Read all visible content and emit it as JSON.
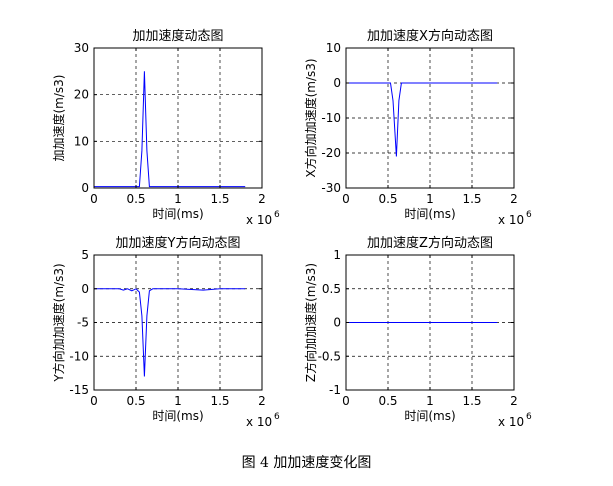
{
  "figure_caption": "图 4  加加速度变化图",
  "chart_data": [
    {
      "type": "line",
      "title": "加加速度动态图",
      "xlabel": "时间(ms)",
      "ylabel": "加加速度(m/s3)",
      "x_multiplier": "x 10",
      "x_exponent": "6",
      "xlim": [
        0,
        2
      ],
      "ylim": [
        0,
        30
      ],
      "xticks": [
        0,
        0.5,
        1,
        1.5,
        2
      ],
      "xtick_labels": [
        "0",
        "0.5",
        "1",
        "1.5",
        "2"
      ],
      "yticks": [
        0,
        10,
        20,
        30
      ],
      "ytick_labels": [
        "0",
        "10",
        "20",
        "30"
      ],
      "grid": true,
      "line_color": "#0000ff",
      "series": [
        {
          "x": [
            0,
            0.54,
            0.57,
            0.6,
            0.63,
            0.66,
            1.0,
            1.5,
            1.8
          ],
          "y": [
            0.3,
            0.3,
            8,
            25,
            8,
            0.3,
            0.3,
            0.3,
            0.3
          ]
        }
      ]
    },
    {
      "type": "line",
      "title": "加加速度X方向动态图",
      "xlabel": "时间(ms)",
      "ylabel": "X方向加加速度(m/s3)",
      "x_multiplier": "x 10",
      "x_exponent": "6",
      "xlim": [
        0,
        2
      ],
      "ylim": [
        -30,
        10
      ],
      "xticks": [
        0,
        0.5,
        1,
        1.5,
        2
      ],
      "xtick_labels": [
        "0",
        "0.5",
        "1",
        "1.5",
        "2"
      ],
      "yticks": [
        -30,
        -20,
        -10,
        0,
        10
      ],
      "ytick_labels": [
        "-30",
        "-20",
        "-10",
        "0",
        "10"
      ],
      "grid": true,
      "line_color": "#0000ff",
      "series": [
        {
          "x": [
            0,
            0.53,
            0.56,
            0.6,
            0.63,
            0.66,
            1.0,
            1.5,
            1.8
          ],
          "y": [
            0,
            0,
            -5,
            -21,
            -5,
            0,
            0,
            0,
            0
          ]
        }
      ]
    },
    {
      "type": "line",
      "title": "加加速度Y方向动态图",
      "xlabel": "时间(ms)",
      "ylabel": "Y方向加加速度(m/s3)",
      "x_multiplier": "x 10",
      "x_exponent": "6",
      "xlim": [
        0,
        2
      ],
      "ylim": [
        -15,
        5
      ],
      "xticks": [
        0,
        0.5,
        1,
        1.5,
        2
      ],
      "xtick_labels": [
        "0",
        "0.5",
        "1",
        "1.5",
        "2"
      ],
      "yticks": [
        -15,
        -10,
        -5,
        0,
        5
      ],
      "ytick_labels": [
        "-15",
        "-10",
        "-5",
        "0",
        "5"
      ],
      "grid": true,
      "line_color": "#0000ff",
      "series": [
        {
          "x": [
            0,
            0.3,
            0.35,
            0.4,
            0.45,
            0.5,
            0.54,
            0.57,
            0.6,
            0.63,
            0.66,
            0.7,
            1.0,
            1.3,
            1.5,
            1.8
          ],
          "y": [
            0,
            0,
            -0.2,
            0,
            -0.3,
            0,
            -0.5,
            -4,
            -13,
            -4,
            -0.3,
            0,
            0,
            -0.2,
            0,
            0
          ]
        }
      ]
    },
    {
      "type": "line",
      "title": "加加速度Z方向动态图",
      "xlabel": "时间(ms)",
      "ylabel": "Z方向加加速度(m/s3)",
      "x_multiplier": "x 10",
      "x_exponent": "6",
      "xlim": [
        0,
        2
      ],
      "ylim": [
        -1,
        1
      ],
      "xticks": [
        0,
        0.5,
        1,
        1.5,
        2
      ],
      "xtick_labels": [
        "0",
        "0.5",
        "1",
        "1.5",
        "2"
      ],
      "yticks": [
        -1,
        -0.5,
        0,
        0.5,
        1
      ],
      "ytick_labels": [
        "-1",
        "-0.5",
        "0",
        "0.5",
        "1"
      ],
      "grid": true,
      "line_color": "#0000ff",
      "series": [
        {
          "x": [
            0,
            1.8
          ],
          "y": [
            0,
            0
          ]
        }
      ]
    }
  ]
}
